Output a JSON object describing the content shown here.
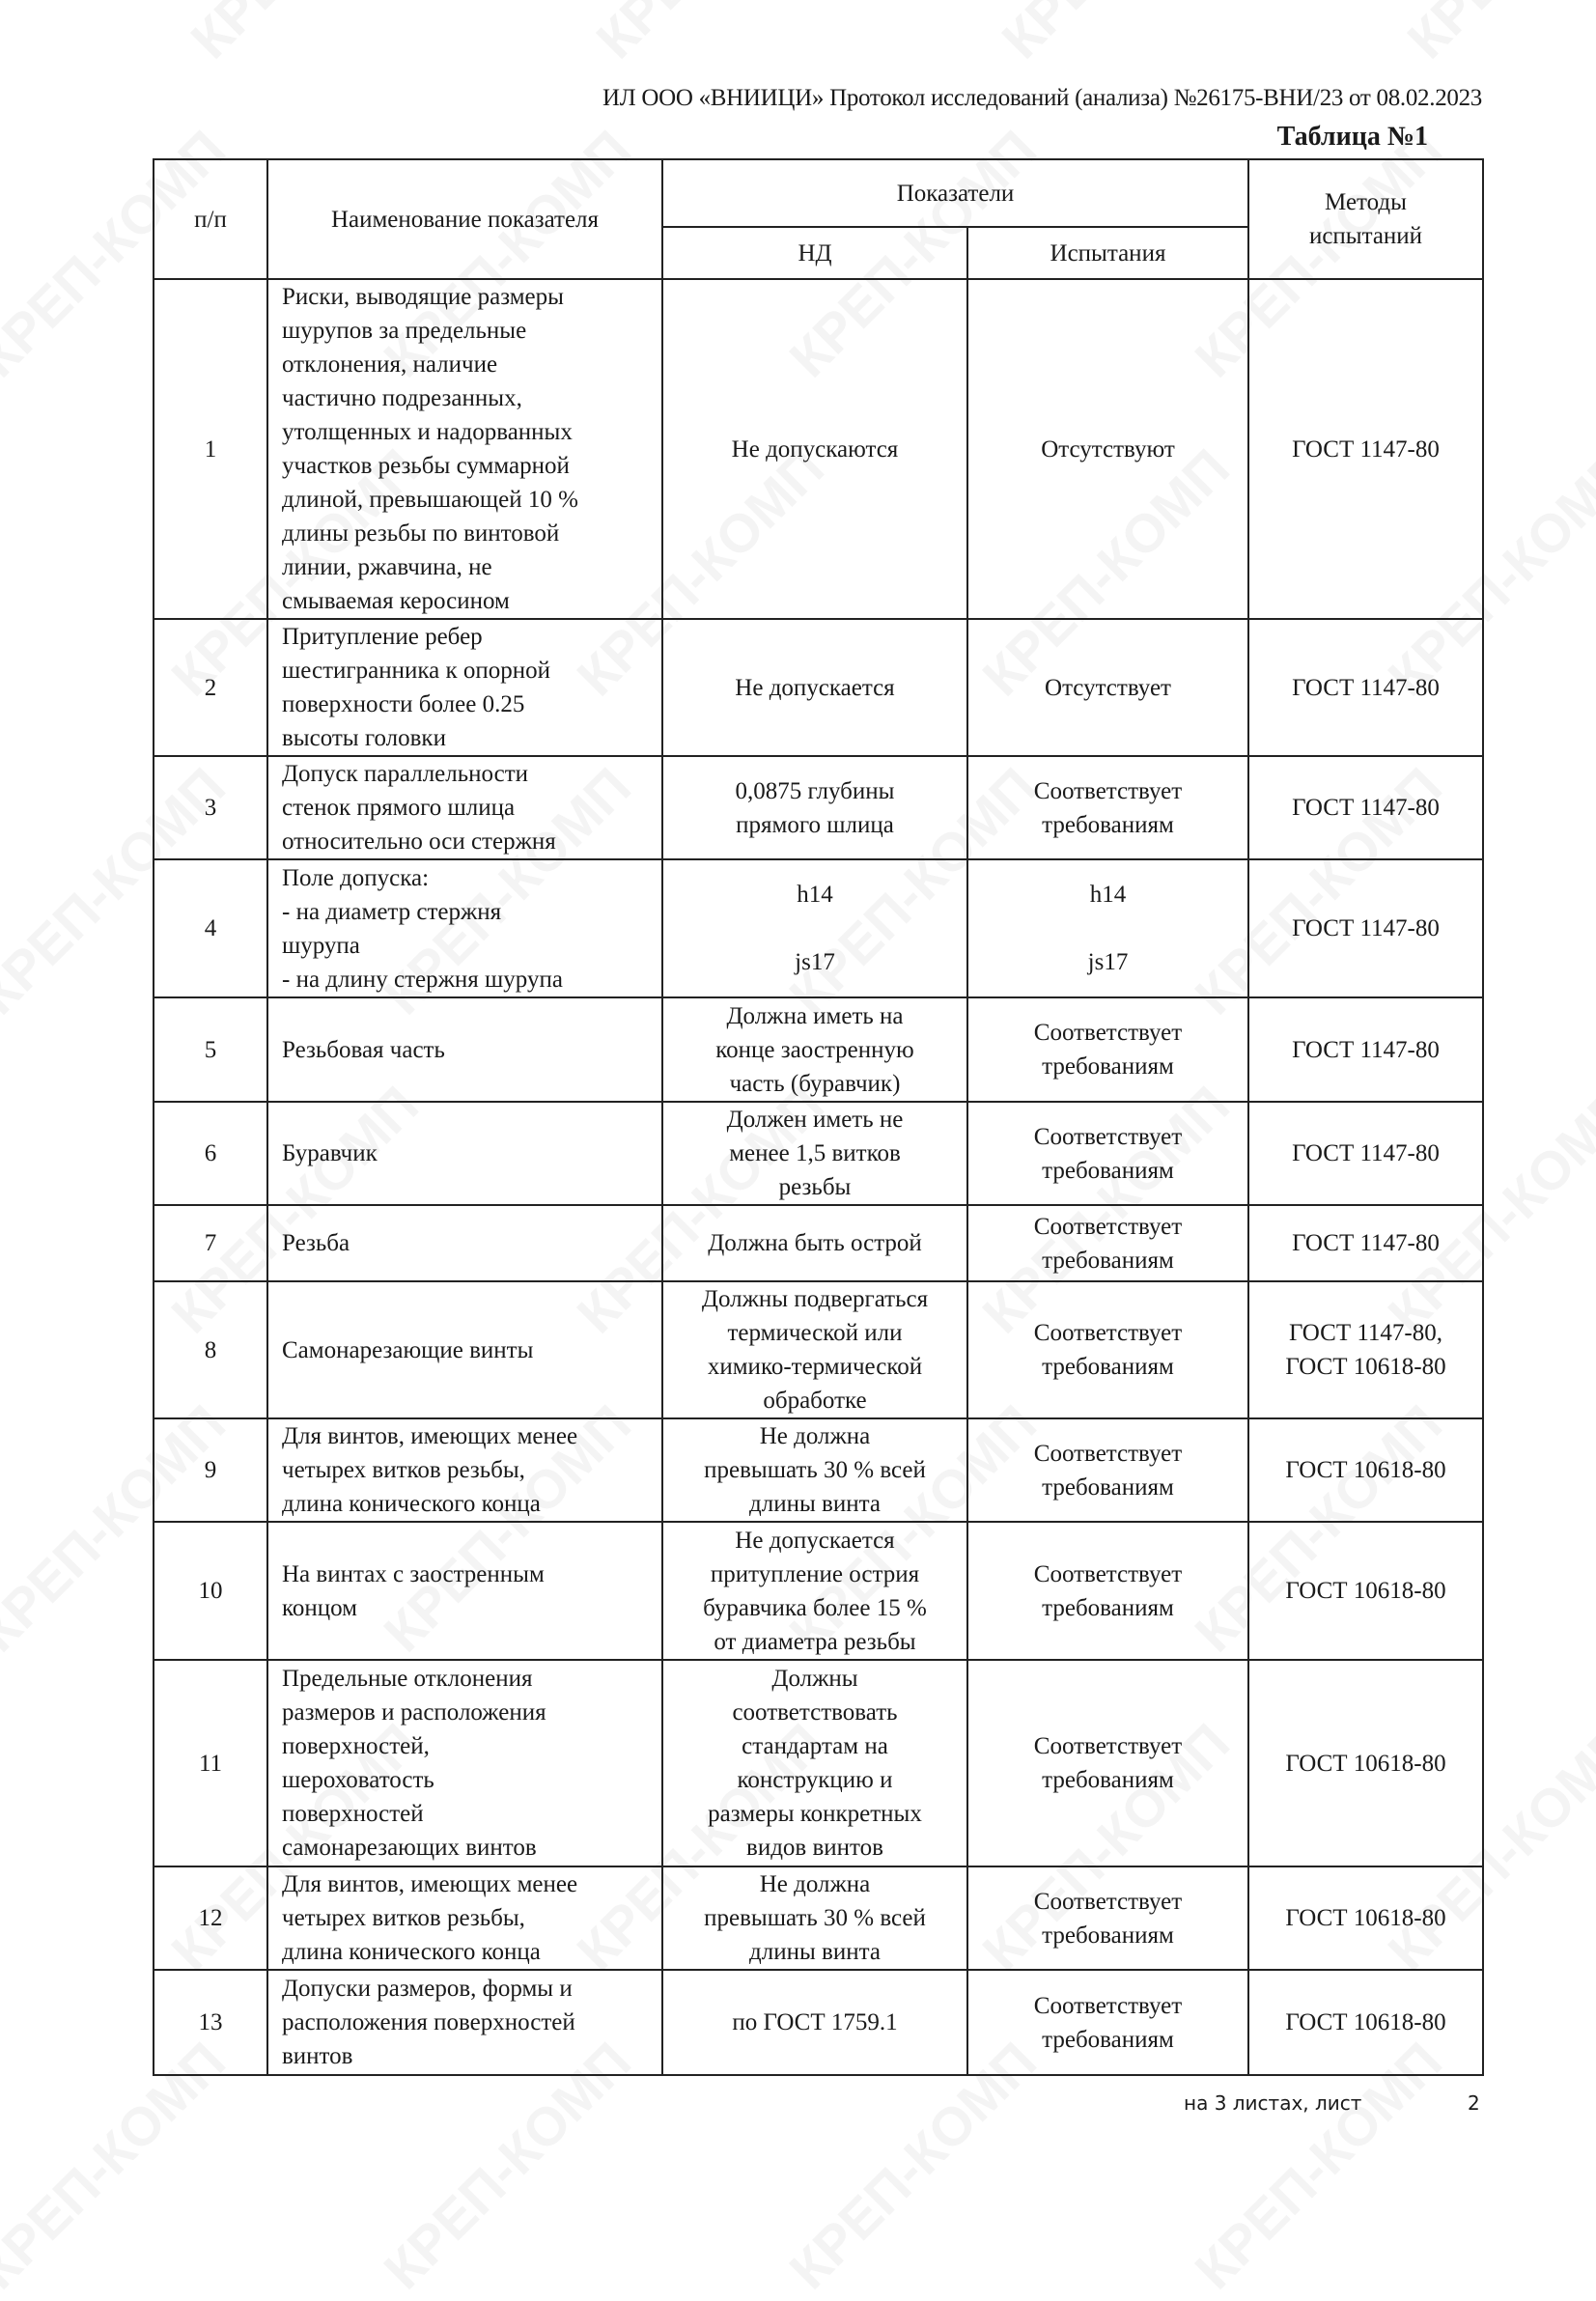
{
  "header": {
    "protocol_line": "ИЛ ООО «ВНИИЦИ» Протокол исследований (анализа)  №26175-ВНИ/23 от  08.02.2023",
    "table_caption": "Таблица №1"
  },
  "watermark": "КРЕП-КОМП",
  "table": {
    "columns": {
      "num": "п/п",
      "name": "Наименование показателя",
      "indicators": "Показатели",
      "nd": "НД",
      "test": "Испытания",
      "methods": "Методы\nиспытаний"
    },
    "rows": [
      {
        "num": "1",
        "name": "Риски, выводящие размеры\nшурупов за предельные\nотклонения, наличие\nчастично подрезанных,\nутолщенных и надорванных\nучастков резьбы суммарной\nдлиной, превышающей 10 %\nдлины резьбы по винтовой\nлинии, ржавчина, не\nсмываемая керосином",
        "nd": "Не допускаются",
        "test": "Отсутствуют",
        "method": "ГОСТ 1147-80"
      },
      {
        "num": "2",
        "name": "Притупление ребер\nшестигранника к опорной\nповерхности более 0.25\nвысоты головки",
        "nd": "Не допускается",
        "test": "Отсутствует",
        "method": "ГОСТ 1147-80"
      },
      {
        "num": "3",
        "name": "Допуск параллельности\nстенок прямого шлица\nотносительно оси стержня",
        "nd": "0,0875 глубины\nпрямого шлица",
        "test": "Соответствует\nтребованиям",
        "method": "ГОСТ 1147-80"
      },
      {
        "num": "4",
        "name": "Поле допуска:\n- на диаметр стержня\nшурупа\n- на длину стержня шурупа",
        "nd": "h14\n\njs17",
        "test": "h14\n\njs17",
        "method": "ГОСТ 1147-80"
      },
      {
        "num": "5",
        "name": "Резьбовая часть",
        "nd": "Должна иметь на\nконце заостренную\nчасть (буравчик)",
        "test": "Соответствует\nтребованиям",
        "method": "ГОСТ 1147-80"
      },
      {
        "num": "6",
        "name": "Буравчик",
        "nd": "Должен иметь не\nменее 1,5 витков\nрезьбы",
        "test": "Соответствует\nтребованиям",
        "method": "ГОСТ 1147-80"
      },
      {
        "num": "7",
        "name": "Резьба",
        "nd": "Должна быть острой",
        "test": "Соответствует\nтребованиям",
        "method": "ГОСТ 1147-80"
      },
      {
        "num": "8",
        "name": "Самонарезающие винты",
        "nd": "Должны подвергаться\nтермической или\nхимико-термической\nобработке",
        "test": "Соответствует\nтребованиям",
        "method": "ГОСТ 1147-80,\nГОСТ 10618-80"
      },
      {
        "num": "9",
        "name": "Для винтов, имеющих менее\nчетырех витков резьбы,\nдлина конического конца",
        "nd": "Не должна\nпревышать 30 % всей\nдлины винта",
        "test": "Соответствует\nтребованиям",
        "method": "ГОСТ 10618-80"
      },
      {
        "num": "10",
        "name": "На винтах с заостренным\nконцом",
        "nd": "Не допускается\nпритупление острия\nбуравчика более 15 %\nот диаметра резьбы",
        "test": "Соответствует\nтребованиям",
        "method": "ГОСТ 10618-80"
      },
      {
        "num": "11",
        "name": "Предельные отклонения\nразмеров и расположения\nповерхностей,\nшероховатость\nповерхностей\nсамонарезающих винтов",
        "nd": "Должны\nсоответствовать\nстандартам на\nконструкцию и\nразмеры конкретных\nвидов винтов",
        "test": "Соответствует\nтребованиям",
        "method": "ГОСТ 10618-80"
      },
      {
        "num": "12",
        "name": "Для винтов, имеющих менее\nчетырех витков резьбы,\nдлина конического конца",
        "nd": "Не должна\nпревышать 30 % всей\nдлины винта",
        "test": "Соответствует\nтребованиям",
        "method": "ГОСТ 10618-80"
      },
      {
        "num": "13",
        "name": "Допуски размеров, формы и\nрасположения поверхностей\nвинтов",
        "nd": "по ГОСТ 1759.1",
        "test": "Соответствует\nтребованиям",
        "method": "ГОСТ 10618-80"
      }
    ]
  },
  "footer": {
    "pages_text": "на 3  листах, лист",
    "sheet_number": "2"
  }
}
